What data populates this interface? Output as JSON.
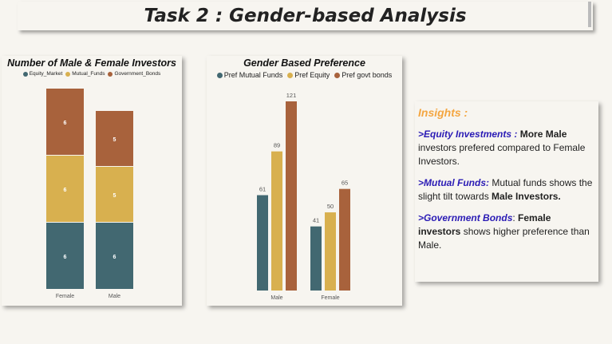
{
  "page": {
    "title": "Task 2 : Gender-based Analysis"
  },
  "colors": {
    "teal": "#426871",
    "mustard": "#d8b04f",
    "rust": "#a8623c",
    "insight_heading": "#f4a641",
    "insight_keyword": "#2a1bb5"
  },
  "chart_data": [
    {
      "type": "bar",
      "stacked": true,
      "title": "Number of Male & Female Investors",
      "categories": [
        "Female",
        "Male"
      ],
      "series": [
        {
          "name": "Equity_Market",
          "color": "#426871",
          "values": [
            6,
            6
          ]
        },
        {
          "name": "Mutual_Funds",
          "color": "#d8b04f",
          "values": [
            6,
            5
          ]
        },
        {
          "name": "Government_Bonds",
          "color": "#a8623c",
          "values": [
            6,
            5
          ]
        }
      ],
      "ylim": [
        0,
        18
      ],
      "legend_position": "top",
      "grid": false
    },
    {
      "type": "bar",
      "stacked": false,
      "title": "Gender Based Preference",
      "categories": [
        "Male",
        "Female"
      ],
      "series": [
        {
          "name": "Pref Mutual Funds",
          "color": "#426871",
          "values": [
            61,
            41
          ]
        },
        {
          "name": "Pref Equity",
          "color": "#d8b04f",
          "values": [
            89,
            50
          ]
        },
        {
          "name": "Pref govt bonds",
          "color": "#a8623c",
          "values": [
            121,
            65
          ]
        }
      ],
      "ylim": [
        0,
        121
      ],
      "legend_position": "top",
      "grid": false
    }
  ],
  "insights": {
    "heading": "Insights :",
    "items": [
      {
        "prefix": ">",
        "keyword": "Equity Investments :",
        "bold": " More Male",
        "text": " investors prefered compared to Female Investors."
      },
      {
        "prefix": ">",
        "keyword": "Mutual Funds:",
        "text": " Mutual funds shows the slight tilt towards ",
        "bold": "Male Investors."
      },
      {
        "prefix": ">",
        "keyword": "Government Bonds",
        "text_mid": ":  ",
        "bold": "Female investors",
        "text": " shows higher preference than Male."
      }
    ]
  }
}
